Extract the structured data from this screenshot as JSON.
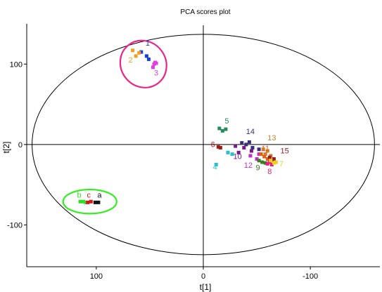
{
  "chart_data": {
    "type": "scatter",
    "title": "PCA scores plot",
    "xlabel": "t[1]",
    "ylabel": "t[2]",
    "x_reversed": true,
    "xlim": [
      165,
      -165
    ],
    "ylim": [
      -152,
      150
    ],
    "x_ticks": [
      {
        "value": 100,
        "label": "100"
      },
      {
        "value": 0,
        "label": "0"
      },
      {
        "value": -100,
        "label": "-100"
      }
    ],
    "y_ticks": [
      {
        "value": 100,
        "label": "100"
      },
      {
        "value": 0,
        "label": "0"
      },
      {
        "value": -100,
        "label": "-100"
      }
    ],
    "confidence_ellipse": {
      "center": [
        0,
        0
      ],
      "semi_x": 160,
      "semi_y": 137,
      "color": "#000000"
    },
    "highlight_ellipses": [
      {
        "center": [
          56,
          100
        ],
        "semi_x": 21,
        "semi_y": 30,
        "rotation_deg": -38,
        "color": "#e8268a"
      },
      {
        "center": [
          106,
          -71
        ],
        "semi_x": 25,
        "semi_y": 15,
        "rotation_deg": 0,
        "color": "#33ee22"
      }
    ],
    "groups": [
      {
        "label": "1",
        "color": "#1a3fd6",
        "label_pos": [
          52,
          123
        ],
        "points": [
          [
            58,
            115
          ],
          [
            53,
            110
          ],
          [
            51,
            106
          ]
        ]
      },
      {
        "label": "2",
        "color": "#f0a020",
        "label_pos": [
          68,
          102
        ],
        "points": [
          [
            66,
            117
          ],
          [
            63,
            110
          ],
          [
            60,
            114
          ]
        ]
      },
      {
        "label": "3",
        "color": "#e040e0",
        "label_pos": [
          44,
          86
        ],
        "points": [
          [
            45,
            102
          ],
          [
            46,
            100
          ],
          [
            47,
            96
          ],
          [
            44,
            101
          ]
        ]
      },
      {
        "label": "5",
        "color": "#2a8a62",
        "label_pos": [
          -22,
          26
        ],
        "points": [
          [
            -15,
            20
          ],
          [
            -21,
            19
          ],
          [
            -18,
            17
          ]
        ]
      },
      {
        "label": "6",
        "color": "#a01818",
        "label_pos": [
          -9,
          -3
        ],
        "points": [
          [
            -14,
            -3
          ],
          [
            -16,
            -4
          ]
        ]
      },
      {
        "label": "4",
        "color": "#28c0d0",
        "label_pos": [
          -11,
          -31
        ],
        "points": [
          [
            -12,
            -25
          ],
          [
            -23,
            -10
          ],
          [
            -27,
            -12
          ]
        ]
      },
      {
        "label": "14",
        "color": "#3a2e78",
        "label_pos": [
          -44,
          13
        ],
        "points": [
          [
            -36,
            2
          ],
          [
            -40,
            0
          ],
          [
            -43,
            3
          ],
          [
            -46,
            -4
          ],
          [
            -52,
            -6
          ]
        ]
      },
      {
        "label": "10",
        "color": "#7a1a8a",
        "label_pos": [
          -32,
          -18
        ],
        "points": [
          [
            -38,
            -4
          ],
          [
            -45,
            -8
          ],
          [
            -33,
            -10
          ],
          [
            -30,
            -2
          ]
        ]
      },
      {
        "label": "12",
        "color": "#c030c8",
        "label_pos": [
          -42,
          -29
        ],
        "points": [
          [
            -44,
            -14
          ],
          [
            -50,
            -18
          ],
          [
            -52,
            -12
          ]
        ]
      },
      {
        "label": "13",
        "color": "#d08030",
        "label_pos": [
          -64,
          5
        ],
        "points": [
          [
            -56,
            -6
          ],
          [
            -60,
            -8
          ],
          [
            -58,
            -12
          ],
          [
            -63,
            -14
          ]
        ]
      },
      {
        "label": "11",
        "color": "#e06010",
        "label_pos": [
          -58,
          -8
        ],
        "points": [
          [
            -54,
            -12
          ],
          [
            -57,
            -15
          ],
          [
            -60,
            -18
          ]
        ]
      },
      {
        "label": "15",
        "color": "#9a2020",
        "label_pos": [
          -76,
          -11
        ],
        "points": [
          [
            -62,
            -16
          ],
          [
            -64,
            -20
          ],
          [
            -66,
            -18
          ]
        ]
      },
      {
        "label": "9",
        "color": "#3a7a20",
        "label_pos": [
          -51,
          -32
        ],
        "points": [
          [
            -52,
            -20
          ],
          [
            -55,
            -22
          ],
          [
            -58,
            -23
          ]
        ]
      },
      {
        "label": "8",
        "color": "#e0207a",
        "label_pos": [
          -62,
          -37
        ],
        "points": [
          [
            -60,
            -24
          ],
          [
            -62,
            -22
          ],
          [
            -64,
            -25
          ]
        ]
      },
      {
        "label": "7",
        "color": "#f0d020",
        "label_pos": [
          -73,
          -27
        ],
        "points": [
          [
            -63,
            -20
          ],
          [
            -66,
            -23
          ],
          [
            -68,
            -22
          ]
        ]
      },
      {
        "label": "b",
        "color": "#33dd22",
        "label_pos": [
          116,
          -66
        ],
        "points": [
          [
            115,
            -71
          ],
          [
            112,
            -71
          ],
          [
            110,
            -72
          ]
        ]
      },
      {
        "label": "c",
        "color": "#cc1818",
        "label_pos": [
          107,
          -66
        ],
        "points": [
          [
            108,
            -72
          ],
          [
            105,
            -71
          ]
        ]
      },
      {
        "label": "a",
        "color": "#111111",
        "label_pos": [
          97,
          -66
        ],
        "points": [
          [
            101,
            -72
          ],
          [
            98,
            -72
          ]
        ]
      }
    ]
  }
}
